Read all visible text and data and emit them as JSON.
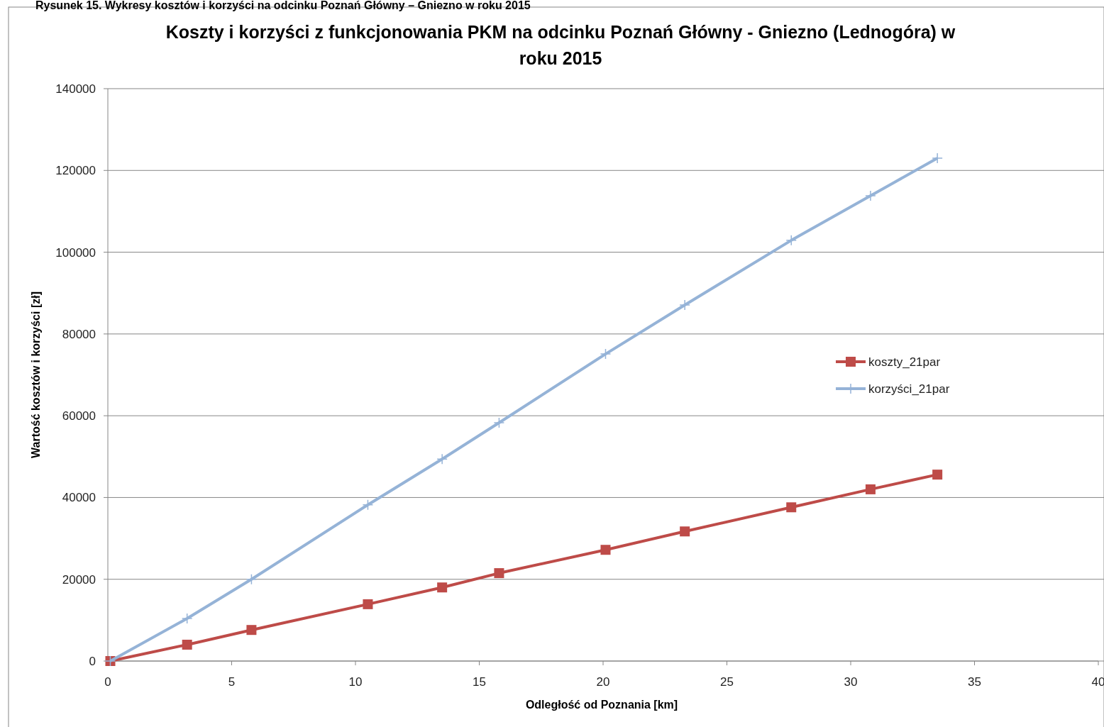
{
  "chart_data": {
    "type": "line",
    "title": "Koszty i korzyści z funkcjonowania PKM na odcinku Poznań Główny  - Gniezno (Lednogóra) w roku 2015",
    "xlabel": "Odległość od Poznania  [km]",
    "ylabel": "Wartość kosztów  i korzyści [zł]",
    "annotations": [
      "Rysunek 15. Wykresy kosztów i korzyści na odcinku Poznań Główny – Gniezno w roku 2015"
    ],
    "x": [
      0.1,
      3.2,
      5.8,
      10.5,
      13.5,
      15.8,
      20.1,
      23.3,
      27.6,
      30.8,
      33.5
    ],
    "series": [
      {
        "name": "koszty_21par",
        "color": "#be4b48",
        "marker": "square",
        "values": [
          0,
          4000,
          7600,
          13900,
          18000,
          21500,
          27200,
          31700,
          37600,
          42000,
          45600
        ]
      },
      {
        "name": "korzyści_21par",
        "color": "#95b3d7",
        "marker": "cross",
        "values": [
          0,
          10400,
          20000,
          38200,
          49400,
          58300,
          75100,
          87100,
          102900,
          113800,
          123000
        ]
      }
    ],
    "xlim": [
      0,
      40
    ],
    "xticks": [
      0,
      5,
      10,
      15,
      20,
      25,
      30,
      35,
      40
    ],
    "ylim": [
      0,
      140000
    ],
    "yticks": [
      0,
      20000,
      40000,
      60000,
      80000,
      100000,
      120000,
      140000
    ],
    "grid": "y",
    "legend": "right",
    "line_style": "solid"
  }
}
